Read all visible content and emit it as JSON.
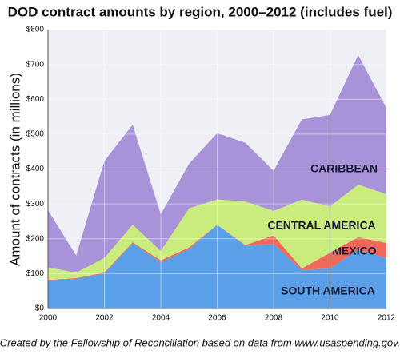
{
  "chart_data": {
    "type": "stacked_area",
    "title": "DOD contract amounts by region, 2000–2012 (includes fuel)",
    "y_label": "Amount of contracts (in millions)",
    "caption": "Created by the Fellowship of Reconciliation based on data from www.usaspending.gov.",
    "x": [
      2000,
      2001,
      2002,
      2003,
      2004,
      2005,
      2006,
      2007,
      2008,
      2009,
      2010,
      2011,
      2012
    ],
    "xlim": [
      2000,
      2012
    ],
    "xticks": [
      2000,
      2002,
      2004,
      2006,
      2008,
      2010,
      2012
    ],
    "ylim": [
      0,
      800
    ],
    "yticks": [
      {
        "value": 0,
        "label": "$0"
      },
      {
        "value": 100,
        "label": "$100"
      },
      {
        "value": 200,
        "label": "$200"
      },
      {
        "value": 300,
        "label": "$300"
      },
      {
        "value": 400,
        "label": "$400"
      },
      {
        "value": 500,
        "label": "$500"
      },
      {
        "value": 600,
        "label": "$600"
      },
      {
        "value": 700,
        "label": "$700"
      },
      {
        "value": 800,
        "label": "$800"
      }
    ],
    "grid": true,
    "series": [
      {
        "name": "SOUTH AMERICA",
        "color": "#5b9fe8",
        "values": [
          80,
          85,
          100,
          187,
          133,
          170,
          240,
          180,
          185,
          110,
          115,
          168,
          145
        ]
      },
      {
        "name": "MEXICO",
        "color": "#f06a5c",
        "values": [
          2,
          2,
          3,
          3,
          5,
          5,
          0,
          2,
          25,
          5,
          45,
          37,
          43
        ]
      },
      {
        "name": "CENTRAL AMERICA",
        "color": "#c9ec7c",
        "values": [
          36,
          16,
          42,
          50,
          27,
          112,
          73,
          125,
          70,
          197,
          133,
          150,
          140
        ]
      },
      {
        "name": "CARIBBEAN",
        "color": "#a993d8",
        "values": [
          164,
          49,
          278,
          287,
          105,
          128,
          190,
          168,
          115,
          230,
          262,
          372,
          247
        ]
      }
    ]
  }
}
